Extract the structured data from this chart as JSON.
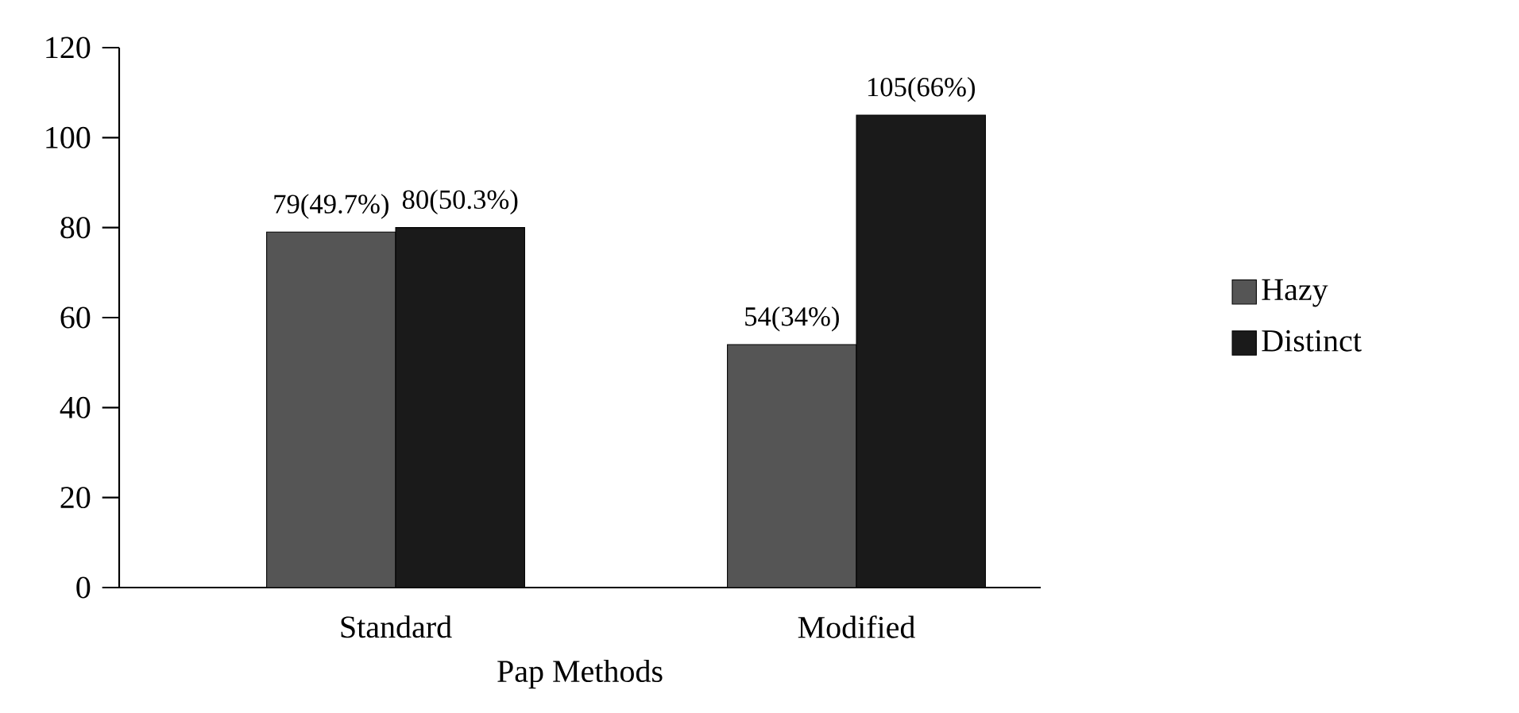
{
  "chart_data": {
    "type": "bar",
    "xlabel": "Pap Methods",
    "categories": [
      "Standard",
      "Modified"
    ],
    "series": [
      {
        "name": "Hazy",
        "color": "#555555",
        "values": [
          79,
          54
        ],
        "value_labels": [
          "79(49.7%)",
          "54(34%)"
        ]
      },
      {
        "name": "Distinct",
        "color": "#1a1a1a",
        "values": [
          80,
          105
        ],
        "value_labels": [
          "80(50.3%)",
          "105(66%)"
        ]
      }
    ],
    "ylim": [
      0,
      120
    ],
    "yticks": [
      0,
      20,
      40,
      60,
      80,
      100,
      120
    ],
    "legend": "right"
  }
}
